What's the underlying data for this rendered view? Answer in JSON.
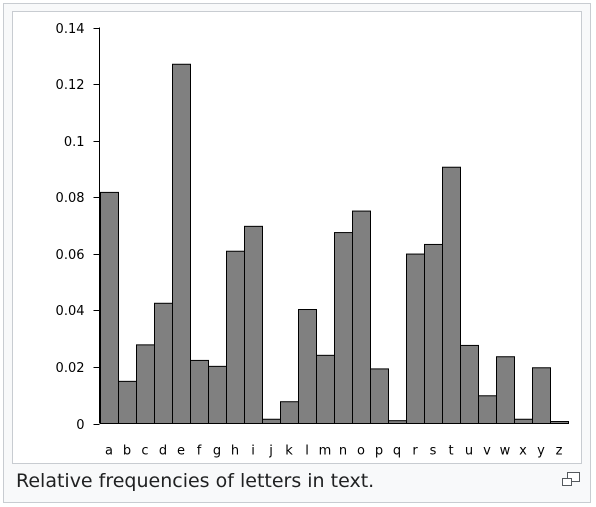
{
  "caption": "Relative frequencies of letters in text.",
  "icons": {
    "magnify": "enlarge-icon"
  },
  "chart_data": {
    "type": "bar",
    "title": "",
    "xlabel": "",
    "ylabel": "",
    "ylim": [
      0,
      0.14
    ],
    "yticks": [
      {
        "value": 0,
        "label": "0"
      },
      {
        "value": 0.02,
        "label": "0.02"
      },
      {
        "value": 0.04,
        "label": "0.04"
      },
      {
        "value": 0.06,
        "label": "0.06"
      },
      {
        "value": 0.08,
        "label": "0.08"
      },
      {
        "value": 0.1,
        "label": "0.1"
      },
      {
        "value": 0.12,
        "label": "0.12"
      },
      {
        "value": 0.14,
        "label": "0.14"
      }
    ],
    "categories": [
      "a",
      "b",
      "c",
      "d",
      "e",
      "f",
      "g",
      "h",
      "i",
      "j",
      "k",
      "l",
      "m",
      "n",
      "o",
      "p",
      "q",
      "r",
      "s",
      "t",
      "u",
      "v",
      "w",
      "x",
      "y",
      "z"
    ],
    "values": [
      0.0817,
      0.0149,
      0.0278,
      0.0425,
      0.127,
      0.0223,
      0.0202,
      0.0609,
      0.0697,
      0.0015,
      0.0077,
      0.0403,
      0.0241,
      0.0675,
      0.0751,
      0.0193,
      0.001,
      0.0599,
      0.0633,
      0.0906,
      0.0276,
      0.0098,
      0.0236,
      0.0015,
      0.0197,
      0.0007
    ],
    "bar_color": "#808080",
    "bar_edge_color": "#000000",
    "grid": false,
    "legend": "none"
  }
}
